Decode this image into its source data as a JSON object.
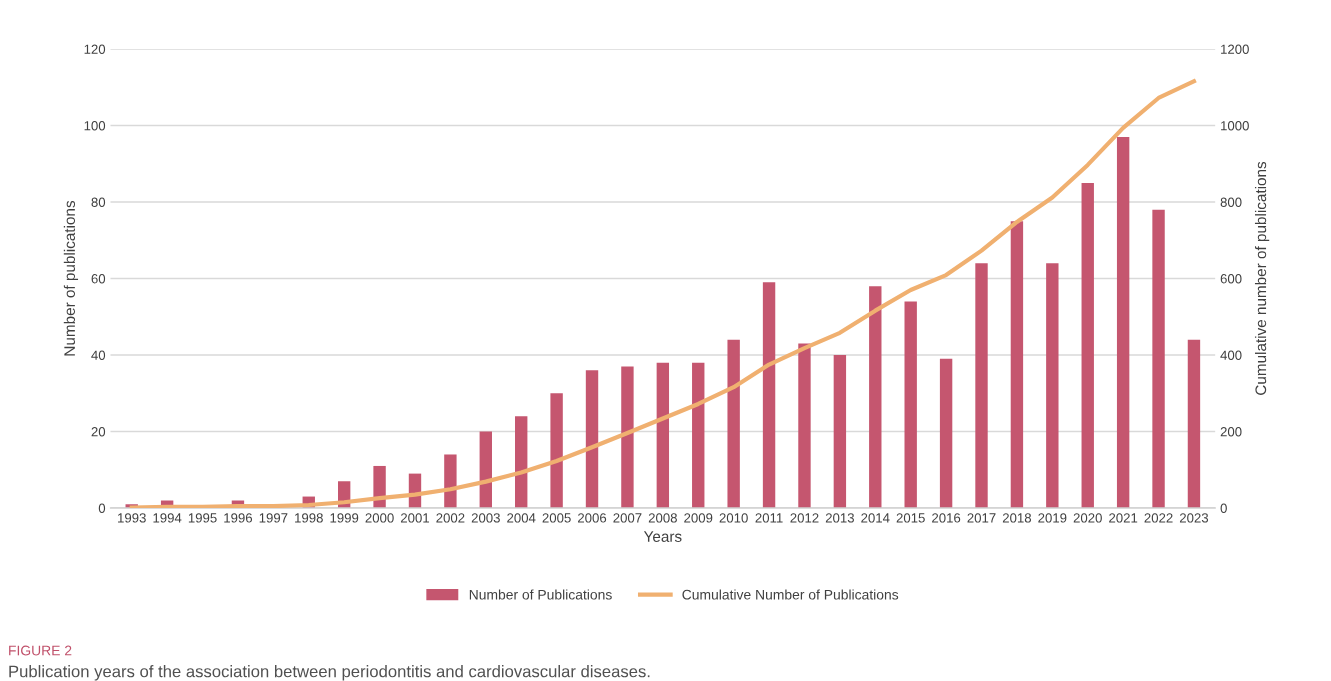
{
  "chart_data": {
    "type": "bar",
    "xlabel": "Years",
    "ylabel": "Number of publications",
    "y2label": "Cumulative number of publications",
    "categories": [
      "1993",
      "1994",
      "1995",
      "1996",
      "1997",
      "1998",
      "1999",
      "2000",
      "2001",
      "2002",
      "2003",
      "2004",
      "2005",
      "2006",
      "2007",
      "2008",
      "2009",
      "2010",
      "2011",
      "2012",
      "2013",
      "2014",
      "2015",
      "2016",
      "2017",
      "2018",
      "2019",
      "2020",
      "2021",
      "2022",
      "2023"
    ],
    "series": [
      {
        "name": "Number of Publications",
        "color": "#c5566f",
        "values": [
          1,
          2,
          0,
          2,
          0,
          3,
          7,
          11,
          9,
          14,
          20,
          24,
          30,
          36,
          37,
          38,
          38,
          44,
          59,
          43,
          40,
          58,
          54,
          39,
          64,
          75,
          64,
          85,
          97,
          78,
          44
        ]
      },
      {
        "name": "Cumulative Number of Publications",
        "type": "line",
        "axis": "y2",
        "color": "#f0b070",
        "values": [
          1,
          3,
          3,
          5,
          5,
          8,
          15,
          26,
          35,
          49,
          69,
          93,
          123,
          159,
          196,
          234,
          272,
          316,
          375,
          418,
          458,
          516,
          570,
          609,
          673,
          748,
          812,
          897,
          994,
          1072,
          1116
        ]
      }
    ],
    "ylim": [
      0,
      120
    ],
    "yticks": [
      0,
      20,
      40,
      60,
      80,
      100,
      120
    ],
    "y2lim": [
      0,
      1200
    ],
    "y2ticks": [
      0,
      200,
      400,
      600,
      800,
      1000,
      1200
    ],
    "grid": "y",
    "legend": "bottom",
    "marker": "none",
    "line_style": "solid",
    "annotations": [
      "FIGURE 2",
      "Publication years of the association between periodontitis and cardiovascular diseases."
    ]
  }
}
